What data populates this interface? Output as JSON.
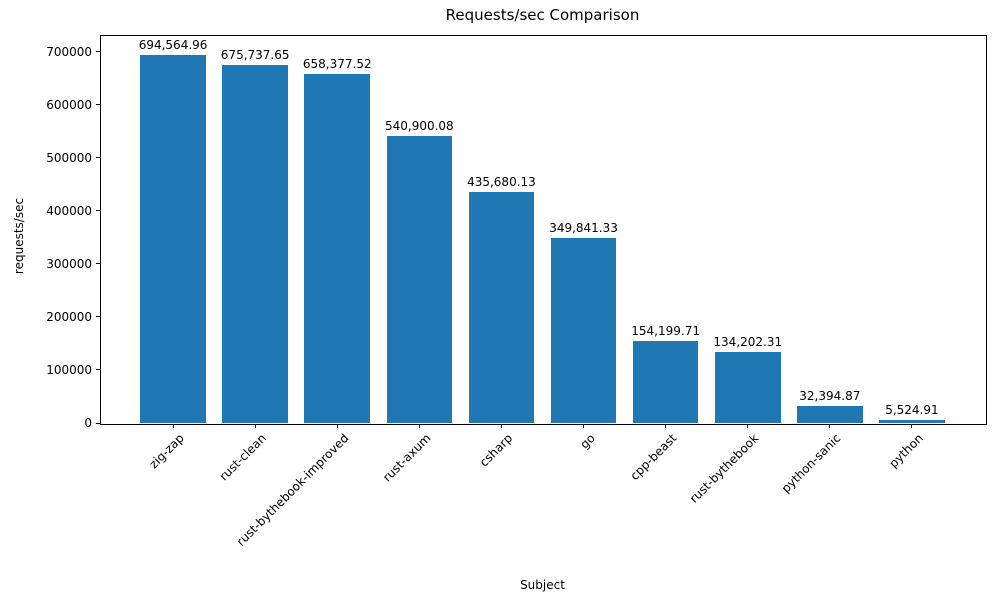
{
  "chart_data": {
    "type": "bar",
    "title": "Requests/sec Comparison",
    "xlabel": "Subject",
    "ylabel": "requests/sec",
    "categories": [
      "zig-zap",
      "rust-clean",
      "rust-bythebook-improved",
      "rust-axum",
      "csharp",
      "go",
      "cpp-beast",
      "rust-bythebook",
      "python-sanic",
      "python"
    ],
    "values": [
      694564.96,
      675737.65,
      658377.52,
      540900.08,
      435680.13,
      349841.33,
      154199.71,
      134202.31,
      32394.87,
      5524.91
    ],
    "value_labels": [
      "694,564.96",
      "675,737.65",
      "658,377.52",
      "540,900.08",
      "435,680.13",
      "349,841.33",
      "154,199.71",
      "134,202.31",
      "32,394.87",
      "5,524.91"
    ],
    "yticks": [
      0,
      100000,
      200000,
      300000,
      400000,
      500000,
      600000,
      700000
    ],
    "ylim": [
      0,
      732000
    ],
    "bar_color": "#1f77b4",
    "grid": false,
    "legend": false
  }
}
